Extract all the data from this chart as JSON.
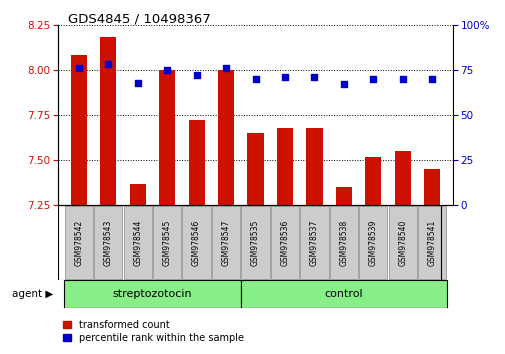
{
  "title": "GDS4845 / 10498367",
  "categories": [
    "GSM978542",
    "GSM978543",
    "GSM978544",
    "GSM978545",
    "GSM978546",
    "GSM978547",
    "GSM978535",
    "GSM978536",
    "GSM978537",
    "GSM978538",
    "GSM978539",
    "GSM978540",
    "GSM978541"
  ],
  "red_values": [
    8.08,
    8.18,
    7.37,
    8.0,
    7.72,
    8.0,
    7.65,
    7.68,
    7.68,
    7.35,
    7.52,
    7.55,
    7.45
  ],
  "blue_values": [
    76,
    78,
    68,
    75,
    72,
    76,
    70,
    71,
    71,
    67,
    70,
    70,
    70
  ],
  "ylim_left": [
    7.25,
    8.25
  ],
  "ylim_right": [
    0,
    100
  ],
  "yticks_left": [
    7.25,
    7.5,
    7.75,
    8.0,
    8.25
  ],
  "yticks_right": [
    0,
    25,
    50,
    75,
    100
  ],
  "group1_label": "streptozotocin",
  "group2_label": "control",
  "group1_count": 6,
  "group2_count": 7,
  "legend_red": "transformed count",
  "legend_blue": "percentile rank within the sample",
  "agent_label": "agent",
  "bar_color": "#cc1100",
  "dot_color": "#0000cc",
  "group_bg_color": "#88ee88",
  "tick_bg_color": "#cccccc",
  "bar_bottom": 7.25,
  "ylabel_left_color": "#cc1100",
  "ylabel_right_color": "#0000cc"
}
